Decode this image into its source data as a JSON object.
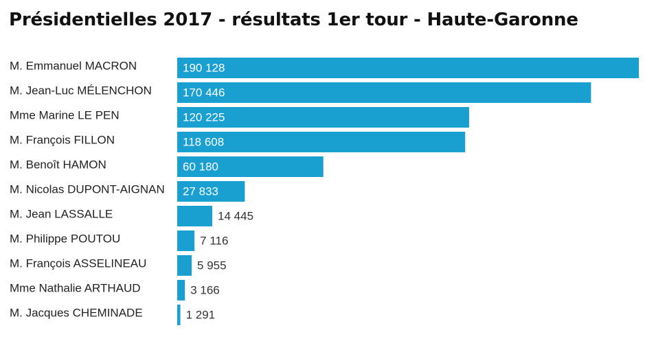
{
  "title": "Présidentielles 2017 - résultats 1er tour - Haute-Garonne",
  "chart_data": {
    "type": "bar",
    "orientation": "horizontal",
    "title": "Présidentielles 2017 - résultats 1er tour - Haute-Garonne",
    "categories": [
      "M. Emmanuel MACRON",
      "M. Jean-Luc MÉLENCHON",
      "Mme Marine LE PEN",
      "M. François FILLON",
      "M. Benoît HAMON",
      "M. Nicolas DUPONT-AIGNAN",
      "M. Jean LASSALLE",
      "M. Philippe POUTOU",
      "M. François ASSELINEAU",
      "Mme Nathalie ARTHAUD",
      "M. Jacques CHEMINADE"
    ],
    "values": [
      190128,
      170446,
      120225,
      118608,
      60180,
      27833,
      14445,
      7116,
      5955,
      3166,
      1291
    ],
    "value_labels": [
      "190 128",
      "170 446",
      "120 225",
      "118 608",
      "60 180",
      "27 833",
      "14 445",
      "7 116",
      "5 955",
      "3 166",
      "1 291"
    ],
    "xlim": [
      0,
      190128
    ],
    "grid": false,
    "legend": "none",
    "bar_color": "#1a9fd1",
    "label_inside_color": "#ffffff",
    "label_outside_color": "#333333"
  }
}
